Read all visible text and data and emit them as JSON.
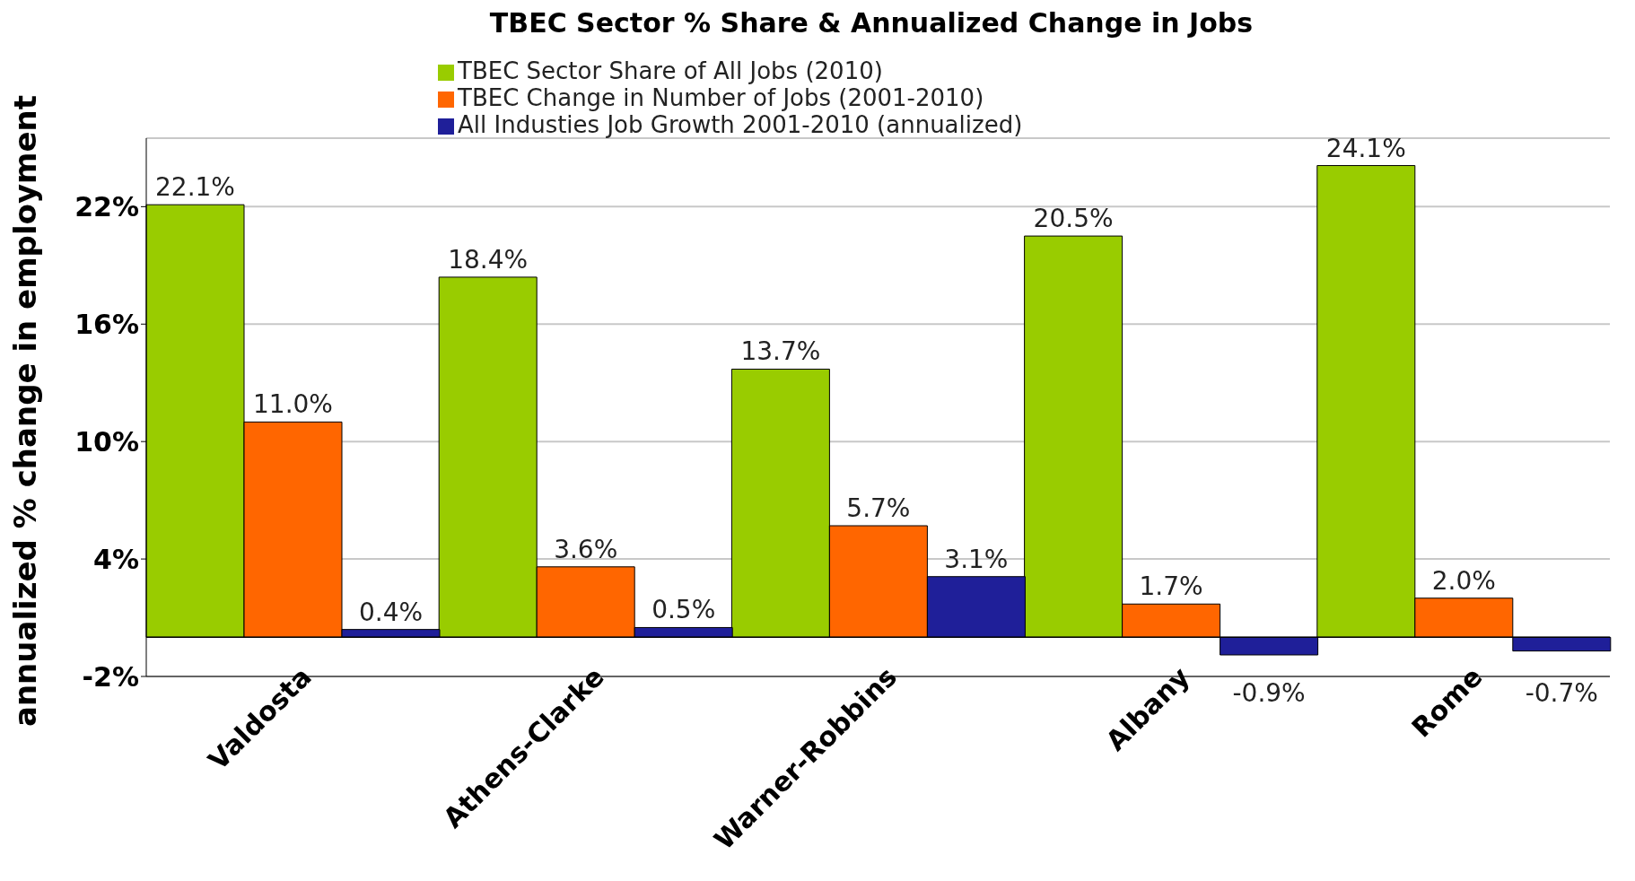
{
  "chart_data": {
    "type": "bar",
    "title": "TBEC  Sector % Share & Annualized Change in Jobs",
    "ylabel": "annualized % change in employment",
    "categories": [
      "Valdosta",
      "Athens-Clarke",
      "Warner-Robbins",
      "Albany",
      "Rome"
    ],
    "series": [
      {
        "name": "TBEC Sector Share of All Jobs  (2010)",
        "color": "#99cc00",
        "values": [
          22.1,
          18.4,
          13.7,
          20.5,
          24.1
        ],
        "value_labels": [
          "22.1%",
          "18.4%",
          "13.7%",
          "20.5%",
          "24.1%"
        ]
      },
      {
        "name": "TBEC Change in Number of Jobs  (2001-2010)",
        "color": "#ff6600",
        "values": [
          11.0,
          3.6,
          5.7,
          1.7,
          2.0
        ],
        "value_labels": [
          "11.0%",
          "3.6%",
          "5.7%",
          "1.7%",
          "2.0%"
        ]
      },
      {
        "name": "All Industies Job Growth 2001-2010 (annualized)",
        "color": "#1f1f99",
        "values": [
          0.4,
          0.5,
          3.1,
          -0.9,
          -0.7
        ],
        "value_labels": [
          "0.4%",
          "0.5%",
          "3.1%",
          "-0.9%",
          "-0.7%"
        ]
      }
    ],
    "ylim": [
      -2,
      25.5
    ],
    "yticks": [
      {
        "value": -2,
        "label": "-2%"
      },
      {
        "value": 4,
        "label": "4%"
      },
      {
        "value": 10,
        "label": "10%"
      },
      {
        "value": 16,
        "label": "16%"
      },
      {
        "value": 22,
        "label": "22%"
      }
    ],
    "grid": "y",
    "legend": "top"
  }
}
